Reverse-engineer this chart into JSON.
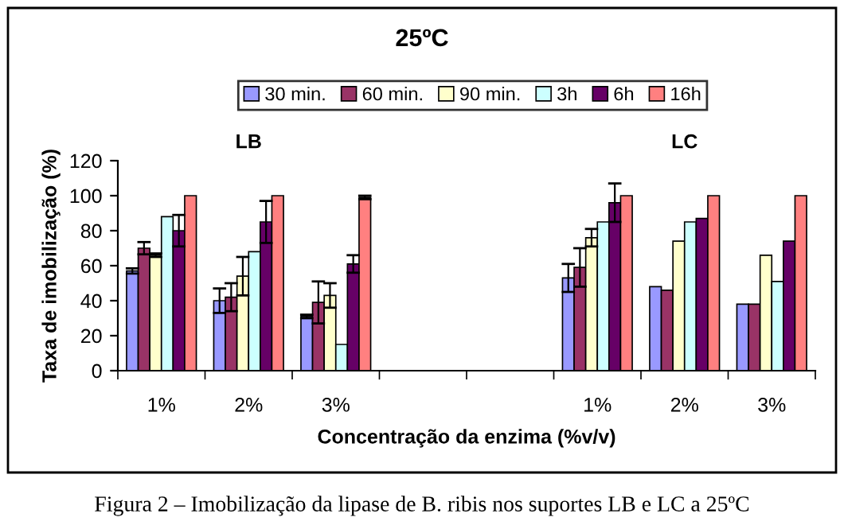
{
  "chart_data": {
    "type": "bar",
    "title": "25ºC",
    "xlabel": "Concentração da enzima (%v/v)",
    "ylabel": "Taxa de imobilização (%)",
    "annotations": [
      "LB",
      "LC",
      "Figura 2 – Imobilização da lipase de B. ribis nos suportes LB e LC a 25ºC"
    ],
    "categories": [
      "1%",
      "2%",
      "3%",
      null,
      null,
      "1%",
      "2%",
      "3%"
    ],
    "series": [
      {
        "name": "30 min.",
        "color": "#9999ff",
        "values": [
          57,
          40,
          31,
          null,
          null,
          53,
          48,
          38
        ],
        "errors": [
          1.5,
          7,
          1,
          null,
          null,
          8,
          null,
          null
        ]
      },
      {
        "name": "60 min.",
        "color": "#993366",
        "values": [
          70,
          42,
          39,
          null,
          null,
          59,
          46,
          38
        ],
        "errors": [
          3.5,
          8,
          12,
          null,
          null,
          11,
          null,
          null
        ]
      },
      {
        "name": "90 min.",
        "color": "#ffffcc",
        "values": [
          66,
          54,
          43,
          null,
          null,
          76,
          74,
          66
        ],
        "errors": [
          1,
          11,
          7,
          null,
          null,
          5,
          null,
          null
        ]
      },
      {
        "name": "3h",
        "color": "#ccffff",
        "values": [
          88,
          68,
          15,
          null,
          null,
          85,
          85,
          51
        ],
        "errors": [
          null,
          null,
          null,
          null,
          null,
          null,
          null,
          null
        ]
      },
      {
        "name": "6h",
        "color": "#660066",
        "values": [
          80,
          85,
          61,
          null,
          null,
          96,
          87,
          74
        ],
        "errors": [
          9,
          12,
          5,
          null,
          null,
          11,
          null,
          null
        ]
      },
      {
        "name": "16h",
        "color": "#ff8080",
        "values": [
          100,
          100,
          99,
          null,
          null,
          100,
          100,
          100
        ],
        "errors": [
          null,
          null,
          1,
          null,
          null,
          null,
          null,
          null
        ]
      }
    ],
    "ylim": [
      0,
      120
    ],
    "yticks": [
      0,
      20,
      40,
      60,
      80,
      100,
      120
    ],
    "grid": false,
    "legend": "top"
  }
}
